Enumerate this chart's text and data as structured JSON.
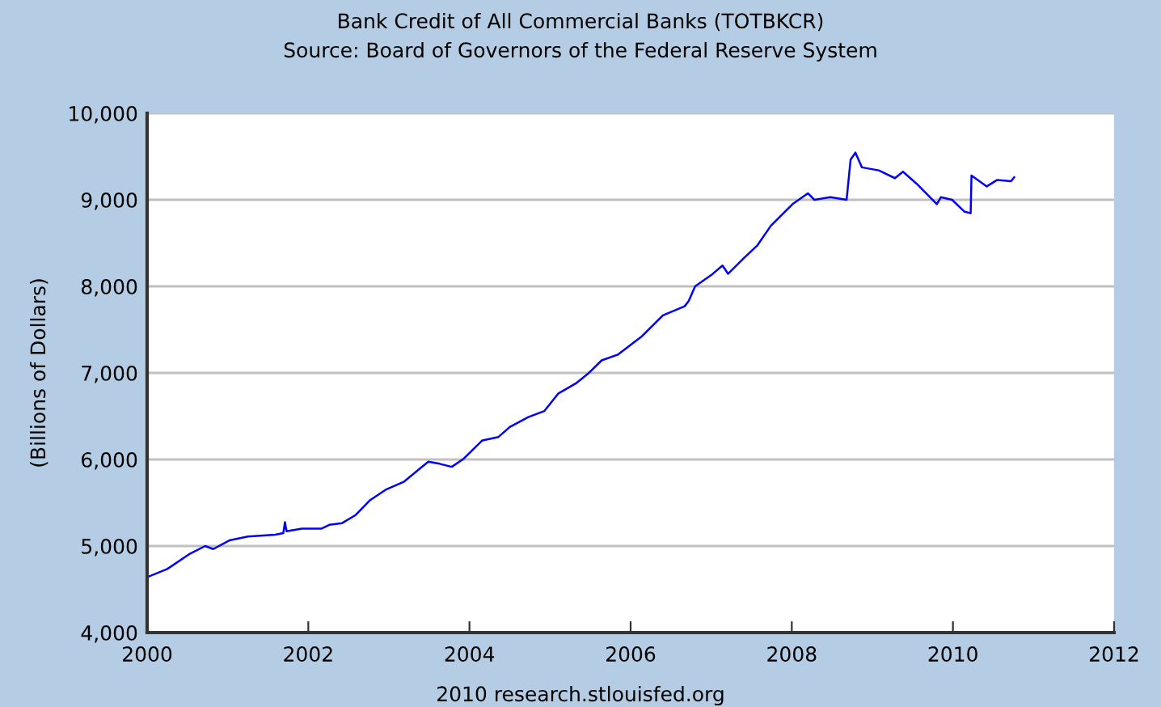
{
  "chart_data": {
    "type": "line",
    "title": "Bank Credit of All Commercial Banks (TOTBKCR)",
    "subtitle": "Source: Board of Governors of the Federal Reserve System",
    "ylabel": "(Billions of Dollars)",
    "annotations": [
      "2010 research.stlouisfed.org"
    ],
    "x": [
      2000.0,
      2000.25,
      2000.52,
      2000.72,
      2000.82,
      2001.02,
      2001.25,
      2001.59,
      2001.69,
      2001.71,
      2001.73,
      2001.92,
      2002.16,
      2002.26,
      2002.42,
      2002.59,
      2002.76,
      2002.96,
      2003.19,
      2003.39,
      2003.49,
      2003.63,
      2003.78,
      2003.93,
      2004.16,
      2004.36,
      2004.5,
      2004.73,
      2004.93,
      2005.1,
      2005.33,
      2005.47,
      2005.64,
      2005.84,
      2006.13,
      2006.4,
      2006.67,
      2006.72,
      2006.8,
      2007.0,
      2007.14,
      2007.21,
      2007.41,
      2007.57,
      2007.74,
      2008.01,
      2008.2,
      2008.28,
      2008.48,
      2008.68,
      2008.73,
      2008.79,
      2008.87,
      2009.08,
      2009.28,
      2009.38,
      2009.55,
      2009.8,
      2009.85,
      2009.99,
      2010.14,
      2010.22,
      2010.23,
      2010.42,
      2010.55,
      2010.72,
      2010.76
    ],
    "series": [
      {
        "color": "#0000ff",
        "values": [
          4640,
          4735,
          4905,
          5000,
          4965,
          5065,
          5110,
          5130,
          5150,
          5275,
          5170,
          5200,
          5200,
          5245,
          5265,
          5360,
          5525,
          5650,
          5745,
          5900,
          5975,
          5950,
          5915,
          6010,
          6220,
          6260,
          6375,
          6490,
          6560,
          6760,
          6885,
          6990,
          7145,
          7210,
          7415,
          7665,
          7770,
          7830,
          8000,
          8130,
          8240,
          8145,
          8330,
          8470,
          8700,
          8950,
          9075,
          9000,
          9030,
          9000,
          9465,
          9545,
          9375,
          9340,
          9250,
          9325,
          9185,
          8950,
          9030,
          9000,
          8865,
          8845,
          9280,
          9155,
          9230,
          9215,
          9260
        ]
      }
    ],
    "xlim": [
      2000,
      2012
    ],
    "xticks": [
      2000,
      2002,
      2004,
      2006,
      2008,
      2010,
      2012
    ],
    "ylim": [
      4000,
      10000
    ],
    "yticks": [
      {
        "value": 4000,
        "label": "4,000"
      },
      {
        "value": 5000,
        "label": "5,000"
      },
      {
        "value": 6000,
        "label": "6,000"
      },
      {
        "value": 7000,
        "label": "7,000"
      },
      {
        "value": 8000,
        "label": "8,000"
      },
      {
        "value": 9000,
        "label": "9,000"
      },
      {
        "value": 10000,
        "label": "10,000"
      }
    ],
    "grid": "y",
    "legend": false,
    "marker": "none",
    "line_style": "solid"
  }
}
